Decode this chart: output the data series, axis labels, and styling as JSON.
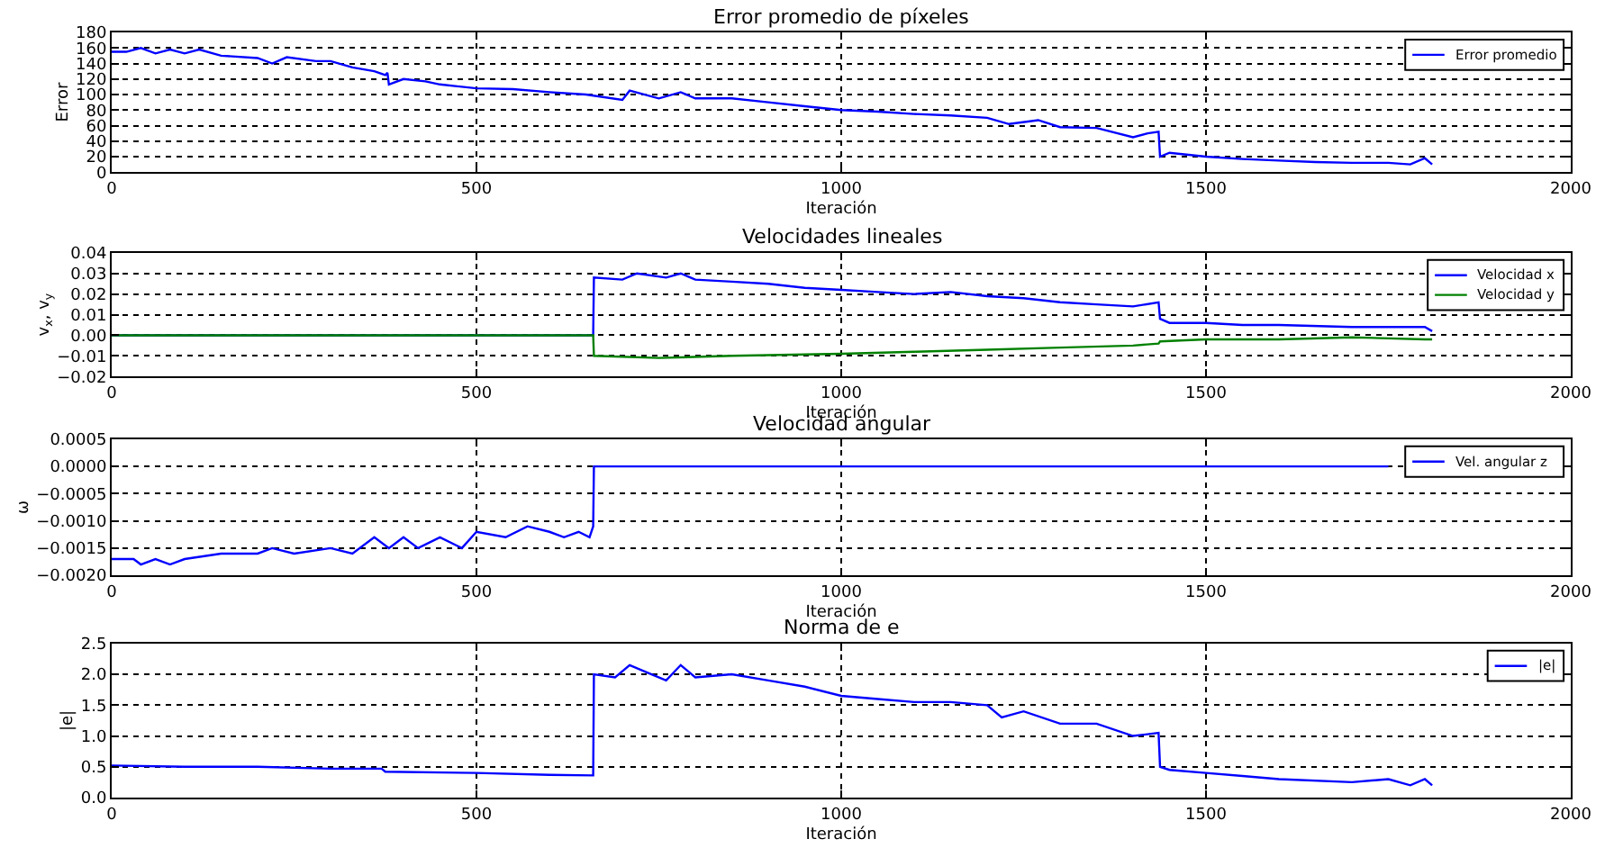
{
  "chart_data": [
    {
      "type": "line",
      "title": "Error promedio de píxeles",
      "xlabel": "Iteración",
      "ylabel": "Error",
      "xlim": [
        0,
        2000
      ],
      "xticks": [
        0,
        500,
        1000,
        1500,
        2000
      ],
      "ylim": [
        0,
        180
      ],
      "yticks": [
        0,
        20,
        40,
        60,
        80,
        100,
        120,
        140,
        160,
        180
      ],
      "grid": true,
      "legend": "top right",
      "line_style": "solid",
      "series": [
        {
          "name": "Error promedio",
          "color": "#0000ff",
          "x": [
            0,
            20,
            40,
            60,
            80,
            100,
            120,
            150,
            200,
            220,
            240,
            280,
            300,
            330,
            360,
            375,
            378,
            380,
            400,
            430,
            450,
            500,
            550,
            600,
            650,
            700,
            710,
            750,
            780,
            800,
            850,
            900,
            950,
            1000,
            1050,
            1100,
            1150,
            1200,
            1230,
            1270,
            1300,
            1350,
            1400,
            1420,
            1435,
            1437,
            1450,
            1500,
            1550,
            1600,
            1650,
            1700,
            1750,
            1780,
            1800,
            1810
          ],
          "values": [
            155,
            155,
            160,
            153,
            158,
            153,
            158,
            150,
            147,
            140,
            148,
            143,
            143,
            135,
            130,
            125,
            128,
            113,
            120,
            117,
            113,
            108,
            107,
            103,
            100,
            93,
            105,
            95,
            103,
            95,
            95,
            90,
            85,
            80,
            78,
            75,
            73,
            70,
            62,
            67,
            58,
            57,
            45,
            50,
            52,
            20,
            25,
            20,
            17,
            15,
            13,
            12,
            12,
            10,
            18,
            10
          ]
        }
      ]
    },
    {
      "type": "line",
      "title": "Velocidades lineales",
      "xlabel": "Iteración",
      "ylabel": "v$_{x}$, v$_{y}$",
      "xlim": [
        0,
        2000
      ],
      "xticks": [
        0,
        500,
        1000,
        1500,
        2000
      ],
      "ylim": [
        -0.02,
        0.04
      ],
      "yticks": [
        {
          "value": -0.02,
          "label": "−0.02"
        },
        {
          "value": -0.01,
          "label": "−0.01"
        },
        {
          "value": 0,
          "label": "0.00"
        },
        {
          "value": 0.01,
          "label": "0.01"
        },
        {
          "value": 0.02,
          "label": "0.02"
        },
        {
          "value": 0.03,
          "label": "0.03"
        },
        {
          "value": 0.04,
          "label": "0.04"
        }
      ],
      "grid": true,
      "legend": "top right",
      "line_style": "solid",
      "series": [
        {
          "name": "Velocidad x",
          "color": "#0000ff",
          "x": [
            0,
            660,
            661,
            700,
            720,
            760,
            780,
            800,
            850,
            900,
            950,
            1000,
            1050,
            1100,
            1150,
            1200,
            1250,
            1300,
            1350,
            1400,
            1435,
            1437,
            1450,
            1500,
            1550,
            1600,
            1700,
            1800,
            1810
          ],
          "values": [
            0,
            0,
            0.028,
            0.027,
            0.03,
            0.028,
            0.03,
            0.027,
            0.026,
            0.025,
            0.023,
            0.022,
            0.021,
            0.02,
            0.021,
            0.019,
            0.018,
            0.016,
            0.015,
            0.014,
            0.016,
            0.008,
            0.006,
            0.006,
            0.005,
            0.005,
            0.004,
            0.004,
            0.002
          ]
        },
        {
          "name": "Velocidad y",
          "color": "#008000",
          "x": [
            0,
            660,
            661,
            750,
            850,
            1000,
            1100,
            1200,
            1300,
            1400,
            1435,
            1437,
            1500,
            1600,
            1700,
            1800,
            1810
          ],
          "values": [
            0,
            0,
            -0.01,
            -0.011,
            -0.01,
            -0.009,
            -0.008,
            -0.007,
            -0.006,
            -0.005,
            -0.004,
            -0.003,
            -0.002,
            -0.002,
            -0.001,
            -0.002,
            -0.002
          ]
        }
      ]
    },
    {
      "type": "line",
      "title": "Velocidad angular",
      "xlabel": "Iteración",
      "ylabel": "ω",
      "xlim": [
        0,
        2000
      ],
      "xticks": [
        0,
        500,
        1000,
        1500,
        2000
      ],
      "ylim": [
        -0.002,
        0.0005
      ],
      "yticks": [
        {
          "value": -0.002,
          "label": "−0.0020"
        },
        {
          "value": -0.0015,
          "label": "−0.0015"
        },
        {
          "value": -0.001,
          "label": "−0.0010"
        },
        {
          "value": -0.0005,
          "label": "−0.0005"
        },
        {
          "value": 0,
          "label": "0.0000"
        },
        {
          "value": 0.0005,
          "label": "0.0005"
        }
      ],
      "grid": true,
      "legend": "top right",
      "line_style": "solid",
      "series": [
        {
          "name": "Vel. angular z",
          "color": "#0000ff",
          "x": [
            0,
            30,
            40,
            60,
            80,
            100,
            150,
            200,
            220,
            250,
            300,
            330,
            360,
            380,
            400,
            420,
            450,
            480,
            500,
            540,
            570,
            600,
            620,
            640,
            655,
            660,
            661,
            1750
          ],
          "values": [
            -0.0017,
            -0.0017,
            -0.0018,
            -0.0017,
            -0.0018,
            -0.0017,
            -0.0016,
            -0.0016,
            -0.0015,
            -0.0016,
            -0.0015,
            -0.0016,
            -0.0013,
            -0.0015,
            -0.0013,
            -0.0015,
            -0.0013,
            -0.0015,
            -0.0012,
            -0.0013,
            -0.0011,
            -0.0012,
            -0.0013,
            -0.0012,
            -0.0013,
            -0.0011,
            0,
            0
          ]
        }
      ]
    },
    {
      "type": "line",
      "title": "Norma de e",
      "xlabel": "Iteración",
      "ylabel": "|e|",
      "xlim": [
        0,
        2000
      ],
      "xticks": [
        0,
        500,
        1000,
        1500,
        2000
      ],
      "ylim": [
        0,
        2.5
      ],
      "yticks": [
        {
          "value": 0,
          "label": "0.0"
        },
        {
          "value": 0.5,
          "label": "0.5"
        },
        {
          "value": 1,
          "label": "1.0"
        },
        {
          "value": 1.5,
          "label": "1.5"
        },
        {
          "value": 2,
          "label": "2.0"
        },
        {
          "value": 2.5,
          "label": "2.5"
        }
      ],
      "grid": true,
      "legend": "top right",
      "line_style": "solid",
      "series": [
        {
          "name": "|e|",
          "color": "#0000ff",
          "x": [
            0,
            100,
            200,
            300,
            370,
            375,
            500,
            600,
            660,
            661,
            690,
            710,
            740,
            760,
            780,
            800,
            850,
            900,
            950,
            1000,
            1050,
            1100,
            1150,
            1200,
            1220,
            1250,
            1300,
            1350,
            1400,
            1435,
            1437,
            1450,
            1500,
            1550,
            1600,
            1700,
            1750,
            1780,
            1800,
            1810
          ],
          "values": [
            0.52,
            0.5,
            0.5,
            0.47,
            0.47,
            0.42,
            0.4,
            0.37,
            0.36,
            2.0,
            1.95,
            2.15,
            2.0,
            1.9,
            2.15,
            1.95,
            2.0,
            1.9,
            1.8,
            1.65,
            1.6,
            1.55,
            1.55,
            1.5,
            1.3,
            1.4,
            1.2,
            1.2,
            1.0,
            1.05,
            0.5,
            0.45,
            0.4,
            0.35,
            0.3,
            0.25,
            0.3,
            0.2,
            0.3,
            0.2
          ]
        }
      ]
    }
  ]
}
